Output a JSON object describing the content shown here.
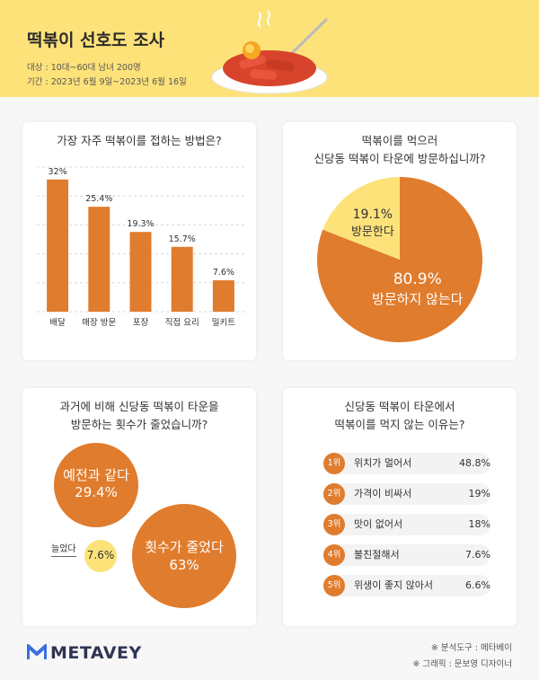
{
  "header": {
    "title": "떡볶이 선호도 조사",
    "target": "대상 : 10대~60대 남녀 200명",
    "period": "기간 : 2023년 6월 9일~2023년 6월 16일"
  },
  "colors": {
    "header_bg": "#fde27a",
    "accent": "#e07c2e",
    "yellow": "#fde27a"
  },
  "chart_data": [
    {
      "type": "bar",
      "title": "가장 자주 떡볶이를 접하는 방법은?",
      "categories": [
        "배달",
        "매장 방문",
        "포장",
        "직접 요리",
        "밀키트"
      ],
      "values": [
        32,
        25.4,
        19.3,
        15.7,
        7.6
      ],
      "value_labels": [
        "32%",
        "25.4%",
        "19.3%",
        "15.7%",
        "7.6%"
      ],
      "ylim": [
        0,
        35
      ],
      "grid": "dashed"
    },
    {
      "type": "pie",
      "title_line1": "떡볶이를 먹으러",
      "title_line2": "신당동 떡볶이 타운에 방문하십니까?",
      "slices": [
        {
          "label": "방문하지 않는다",
          "value": 80.9,
          "value_label": "80.9%",
          "color": "#e07c2e"
        },
        {
          "label": "방문한다",
          "value": 19.1,
          "value_label": "19.1%",
          "color": "#fde27a"
        }
      ]
    },
    {
      "type": "bubble",
      "title_line1": "과거에 비해 신당동 떡볶이 타운을",
      "title_line2": "방문하는 횟수가 줄었습니까?",
      "items": [
        {
          "label": "예전과 같다",
          "value": 29.4,
          "value_label": "29.4%",
          "color": "#e07c2e"
        },
        {
          "label": "횟수가 줄었다",
          "value": 63,
          "value_label": "63%",
          "color": "#e07c2e"
        },
        {
          "label": "늘었다",
          "value": 7.6,
          "value_label": "7.6%",
          "color": "#fde27a"
        }
      ]
    },
    {
      "type": "table",
      "title_line1": "신당동 떡볶이 타운에서",
      "title_line2": "떡볶이를 먹지 않는 이유는?",
      "rows": [
        {
          "rank": "1위",
          "reason": "위치가 멀어서",
          "value": "48.8%"
        },
        {
          "rank": "2위",
          "reason": "가격이 비싸서",
          "value": "19%"
        },
        {
          "rank": "3위",
          "reason": "맛이 없어서",
          "value": "18%"
        },
        {
          "rank": "4위",
          "reason": "불친절해서",
          "value": "7.6%"
        },
        {
          "rank": "5위",
          "reason": "위생이 좋지 않아서",
          "value": "6.6%"
        }
      ]
    }
  ],
  "footer": {
    "logo": "METAVEY",
    "tool": "※ 분석도구 : 메타베이",
    "graphic": "※ 그래픽 : 문보영 디자이너"
  }
}
